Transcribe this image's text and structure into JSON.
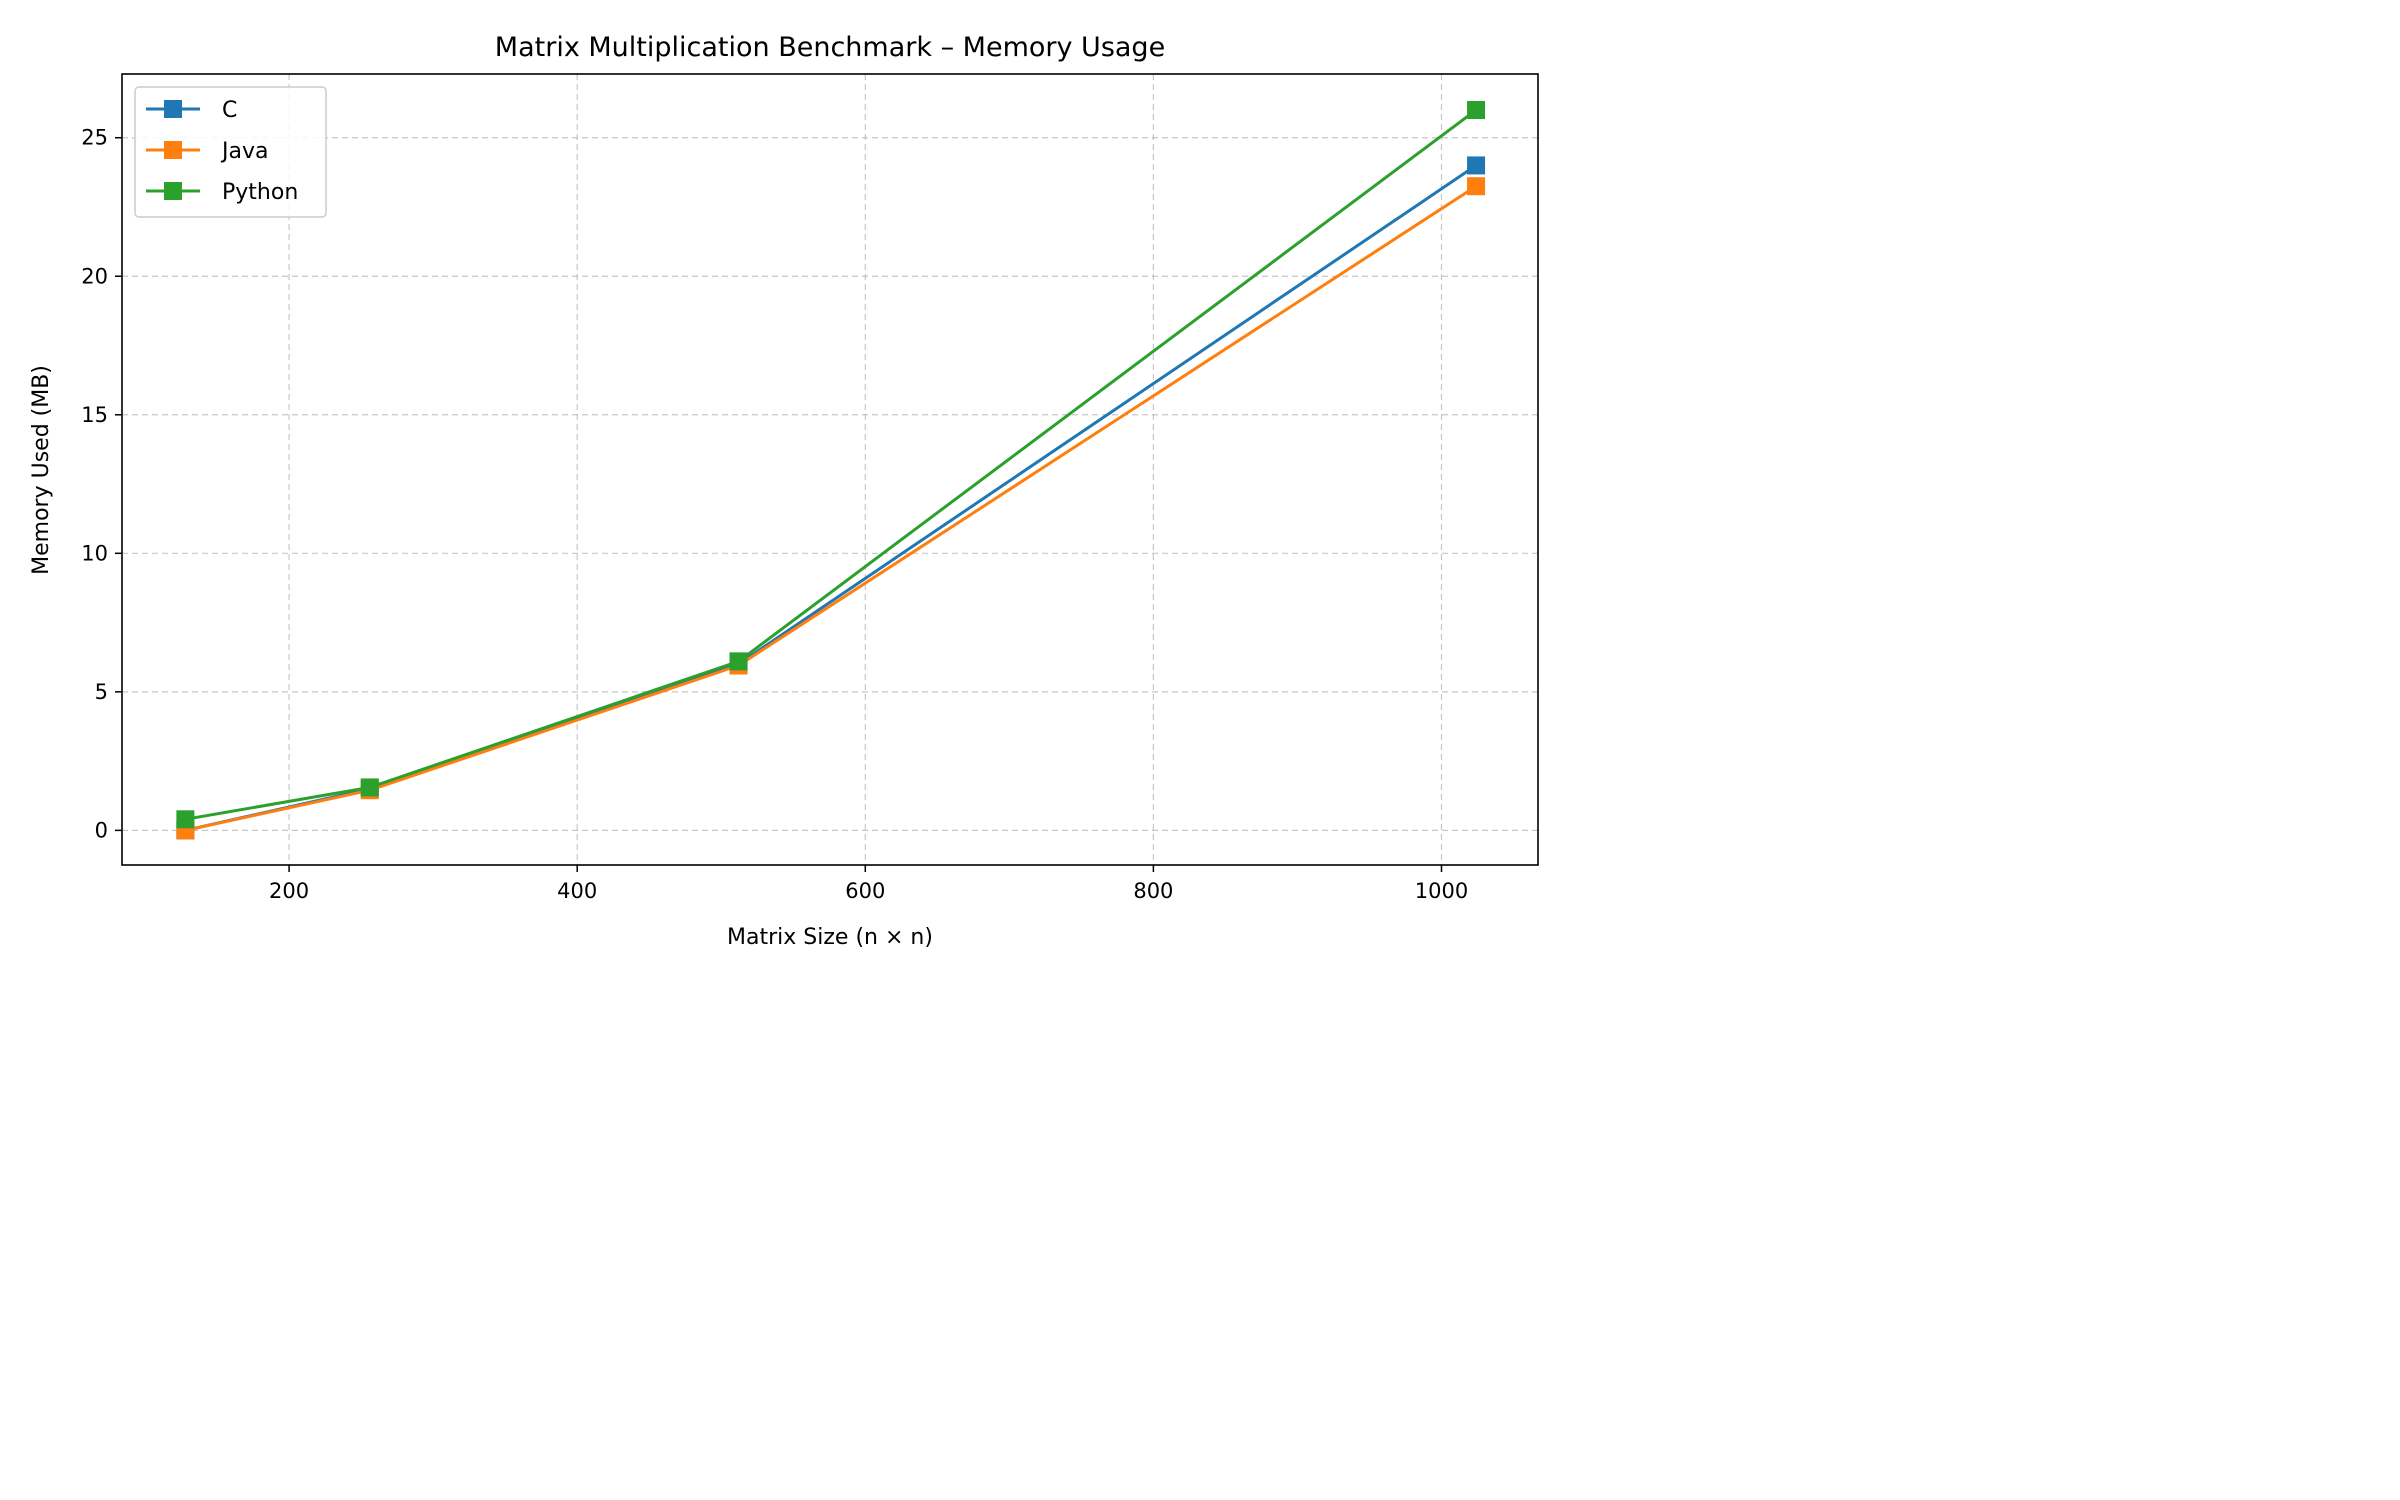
{
  "chart_data": {
    "type": "line",
    "title": "Matrix Multiplication Benchmark – Memory Usage",
    "xlabel": "Matrix Size (n × n)",
    "ylabel": "Memory Used (MB)",
    "x": [
      128,
      256,
      512,
      1024
    ],
    "xlim": [
      84,
      1067
    ],
    "ylim": [
      -1.25,
      27.3
    ],
    "xticks": [
      200,
      400,
      600,
      800,
      1000
    ],
    "yticks": [
      0,
      5,
      10,
      15,
      20,
      25
    ],
    "grid": true,
    "legend_position": "top-left",
    "marker": "square",
    "series": [
      {
        "name": "C",
        "color": "#1f77b4",
        "values": [
          0.0,
          1.5,
          6.0,
          24.0
        ]
      },
      {
        "name": "Java",
        "color": "#ff7f0e",
        "values": [
          0.0,
          1.45,
          5.95,
          23.25
        ]
      },
      {
        "name": "Python",
        "color": "#2ca02c",
        "values": [
          0.4,
          1.55,
          6.1,
          26.0
        ]
      }
    ]
  }
}
